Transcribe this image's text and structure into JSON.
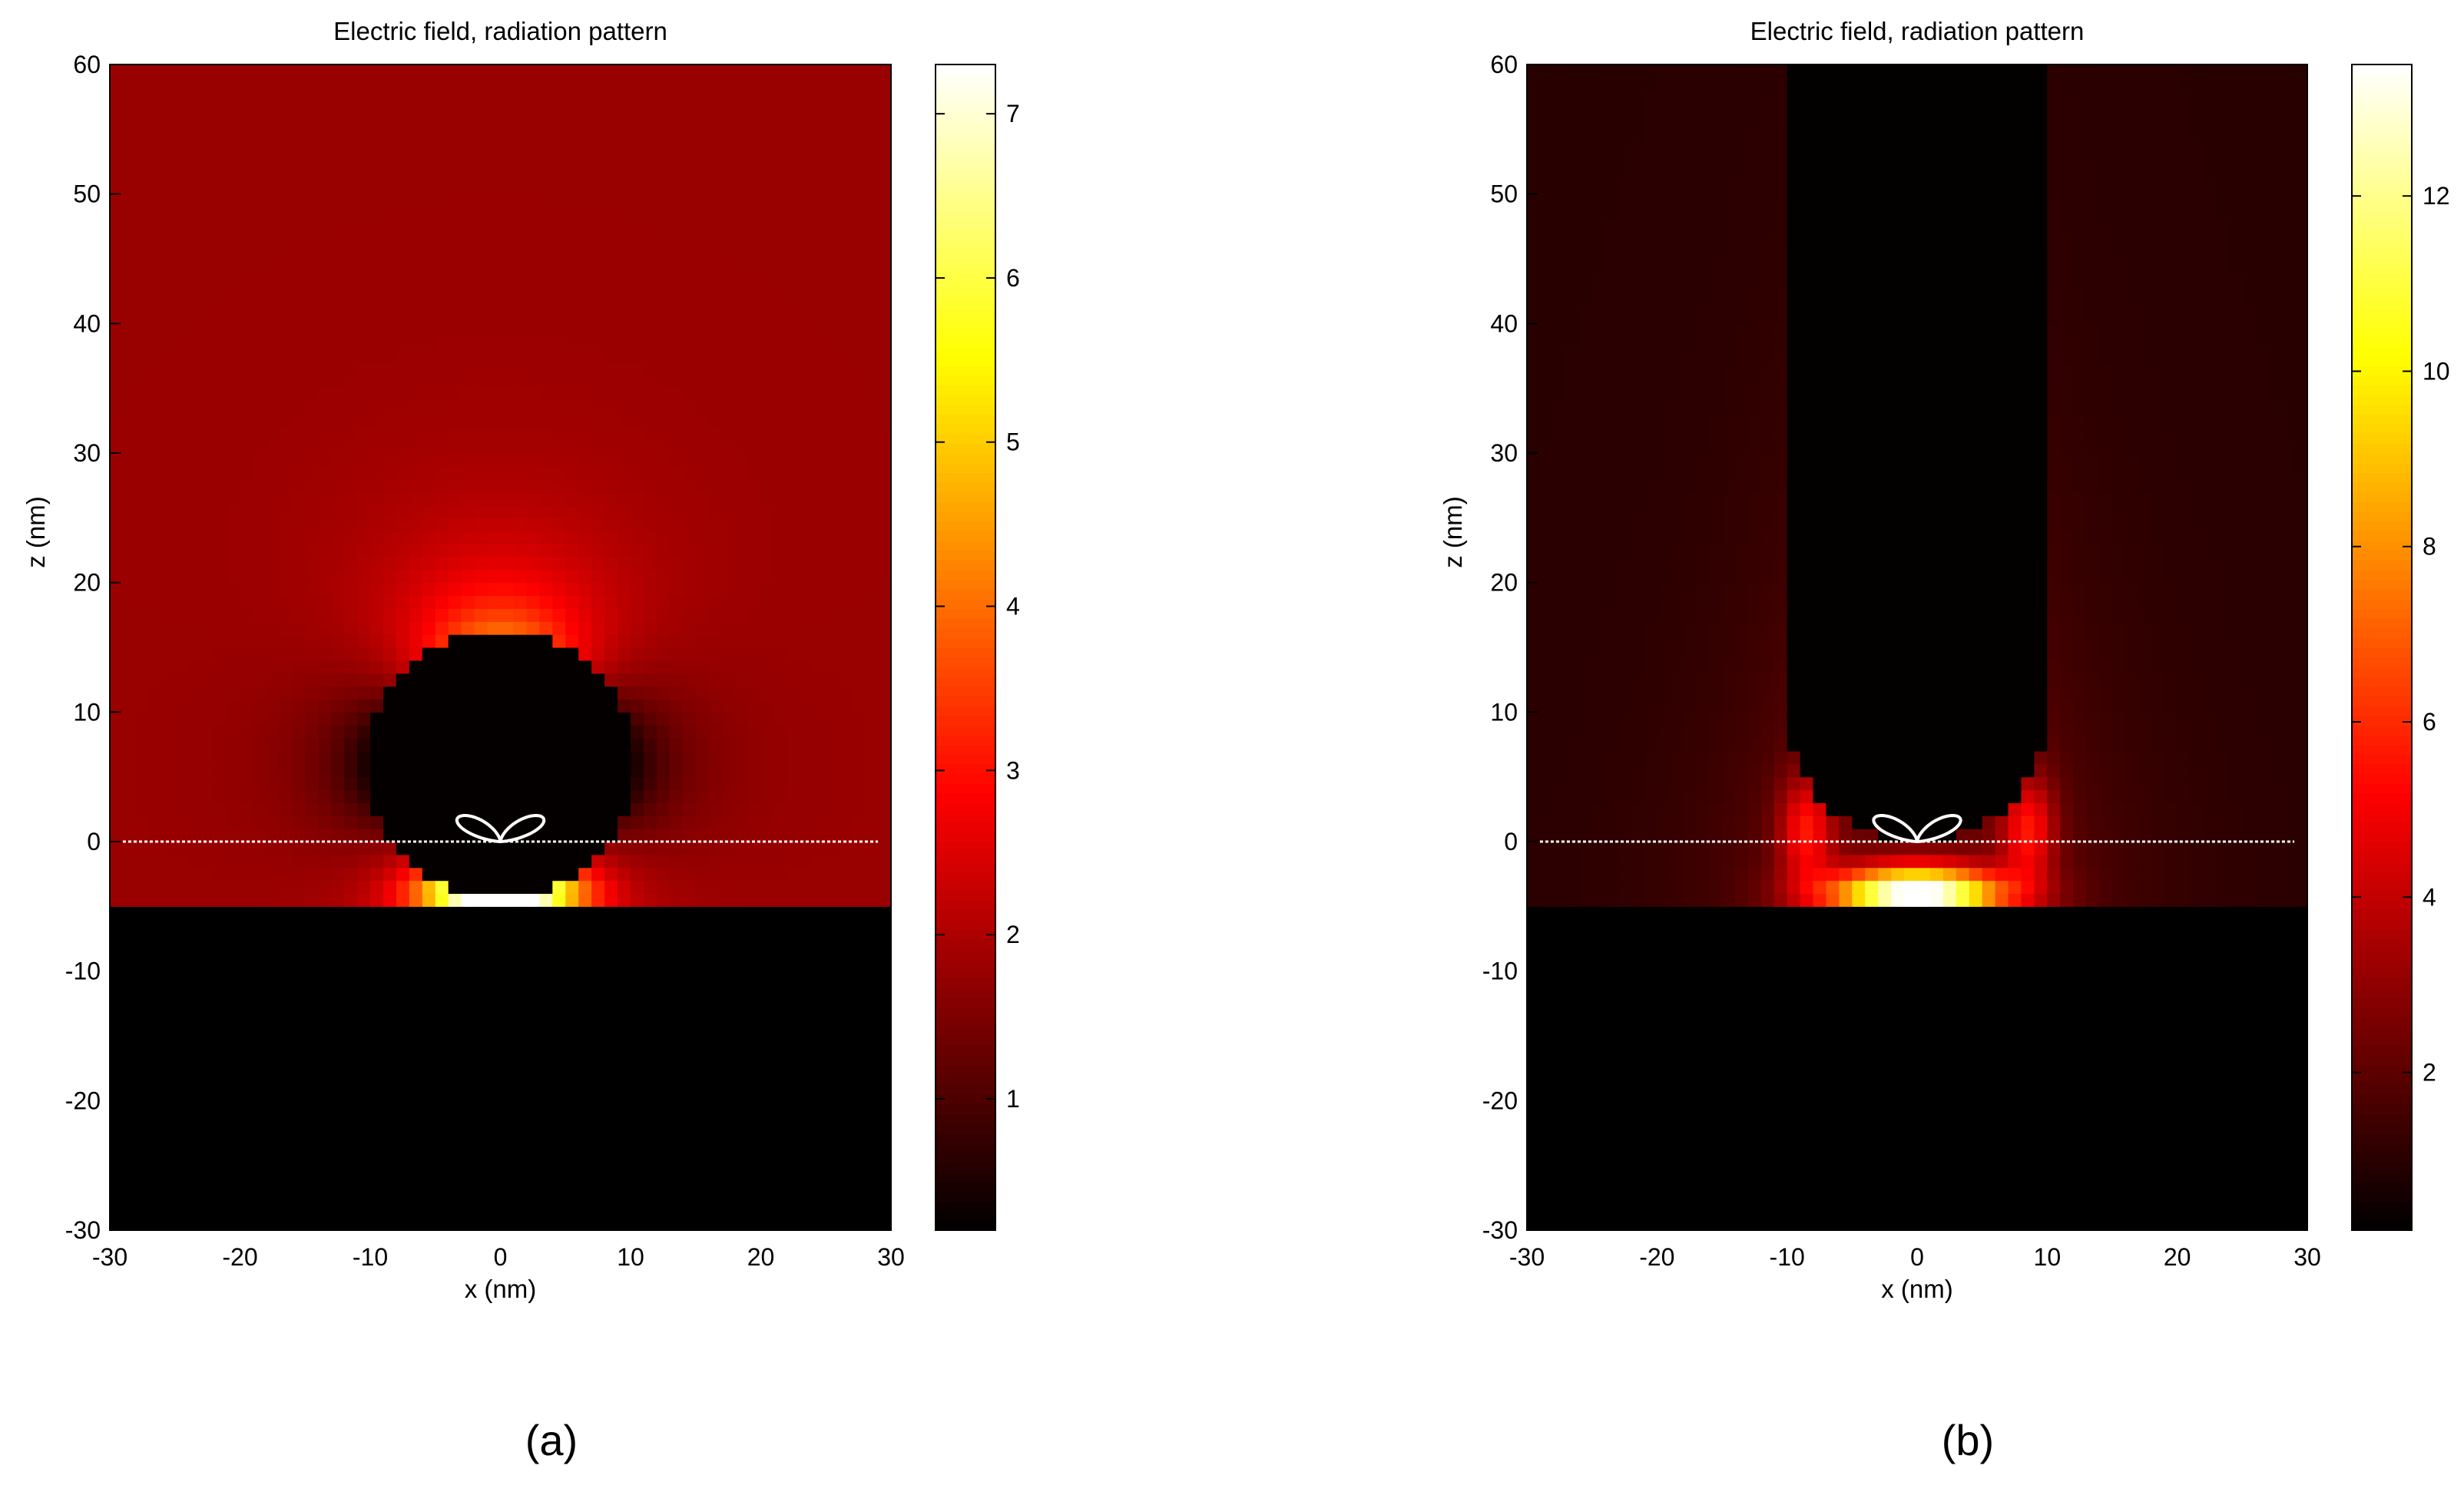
{
  "chart_data": [
    {
      "type": "heatmap",
      "panel": "(a)",
      "title": "Electric field, radiation pattern",
      "xlabel": "x (nm)",
      "ylabel": "z (nm)",
      "xlim": [
        -30,
        30
      ],
      "ylim": [
        -30,
        60
      ],
      "xticks": [
        -30,
        -20,
        -10,
        0,
        10,
        20,
        30
      ],
      "yticks": [
        -30,
        -20,
        -10,
        0,
        10,
        20,
        30,
        40,
        50,
        60
      ],
      "colorbar": {
        "range": [
          0.2,
          7.3
        ],
        "ticks": [
          1,
          2,
          3,
          4,
          5,
          6,
          7
        ],
        "colormap": "hot"
      },
      "background_field": 1.8,
      "peak_field": 7.3,
      "substrate": {
        "z_top": -4.5
      },
      "particle": {
        "shape": "sphere",
        "center_z": 6,
        "radius": 10.5
      },
      "dashed_line": {
        "z": 0,
        "x_range": [
          -29,
          29
        ]
      },
      "dipole_pattern": {
        "center": [
          0,
          0
        ],
        "lobe_length": 4.5
      }
    },
    {
      "type": "heatmap",
      "panel": "(b)",
      "title": "Electric field, radiation pattern",
      "xlabel": "x (nm)",
      "ylabel": "z (nm)",
      "xlim": [
        -30,
        30
      ],
      "ylim": [
        -30,
        60
      ],
      "xticks": [
        -30,
        -20,
        -10,
        0,
        10,
        20,
        30
      ],
      "yticks": [
        -30,
        -20,
        -10,
        0,
        10,
        20,
        30,
        40,
        50,
        60
      ],
      "colorbar": {
        "range": [
          0.2,
          13.5
        ],
        "ticks": [
          2,
          4,
          6,
          8,
          10,
          12
        ],
        "colormap": "hot"
      },
      "background_field": 1.0,
      "peak_field": 13.5,
      "substrate": {
        "z_top": -4.5
      },
      "particle": {
        "shape": "rod",
        "half_width": 10,
        "bottom_cap_radius": 10,
        "z_top": 60
      },
      "dashed_line": {
        "z": 0,
        "x_range": [
          -29,
          29
        ]
      },
      "dipole_pattern": {
        "center": [
          0,
          0
        ],
        "lobe_length": 4.5
      }
    }
  ]
}
